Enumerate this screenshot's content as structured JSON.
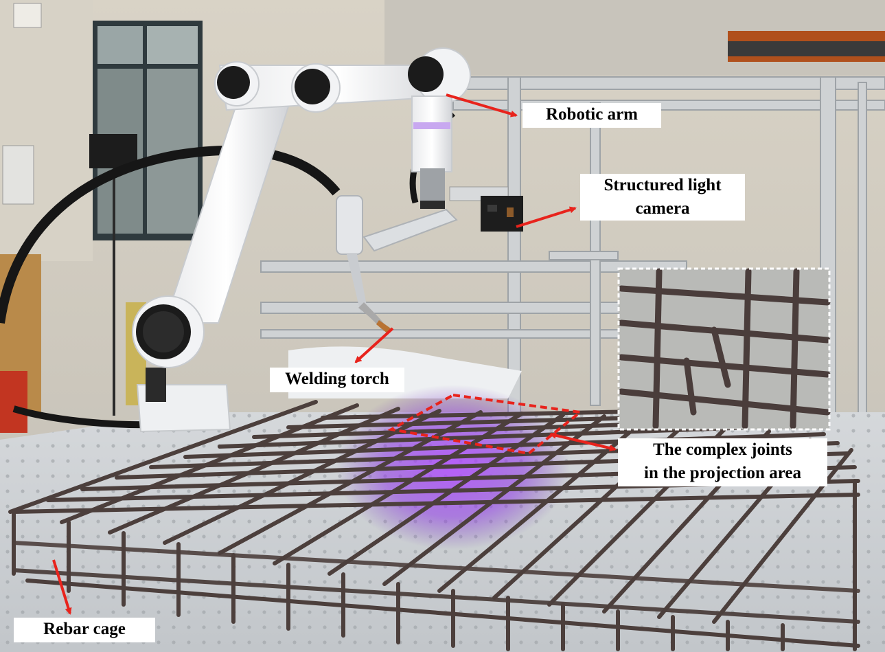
{
  "labels": {
    "robotic_arm": "Robotic arm",
    "camera_line1": "Structured light",
    "camera_line2": "camera",
    "welding_torch": "Welding torch",
    "joints_line1": "The complex joints",
    "joints_line2": "in the projection area",
    "rebar_cage": "Rebar cage"
  },
  "colors": {
    "annotation_arrow": "#e8231c",
    "projection_box": "#e8231c",
    "projection_light": "#a53cff",
    "inset_border": "#ffffff",
    "label_background": "#ffffff",
    "label_text": "#000000"
  },
  "scene": {
    "subject": "robotic arm welding rebar cage",
    "elements": [
      "robotic-arm",
      "welding-torch",
      "structured-light-camera",
      "rebar-cage",
      "projection-area",
      "zoom-inset"
    ]
  }
}
